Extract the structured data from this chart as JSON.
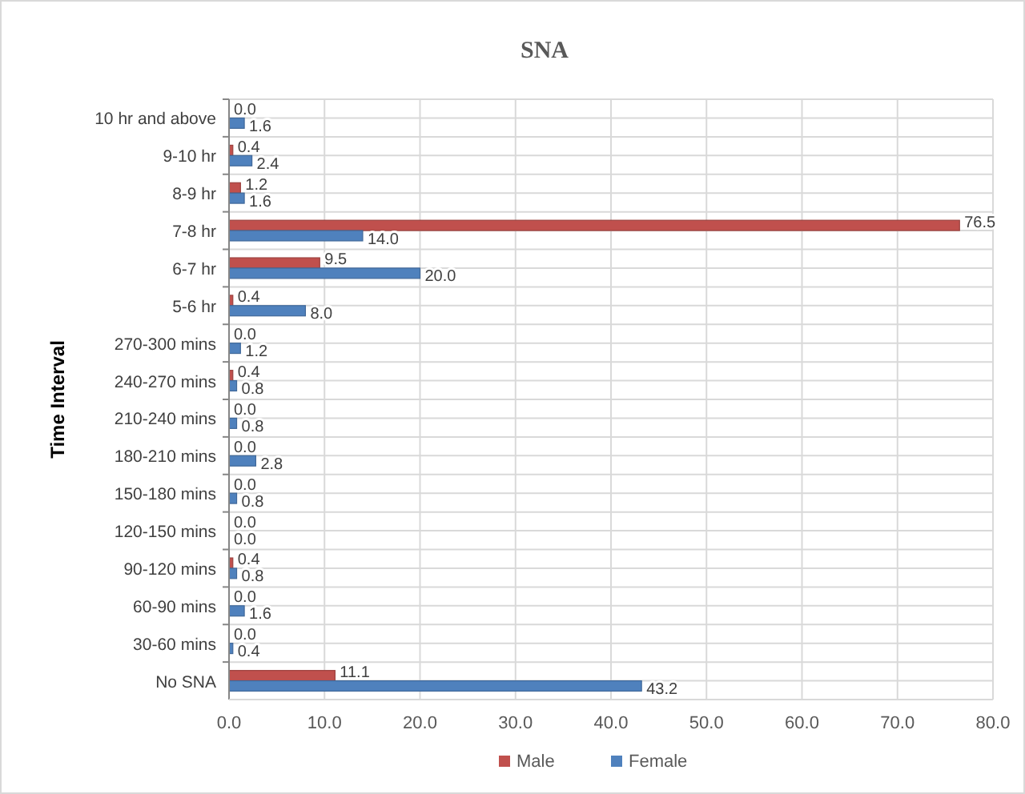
{
  "chart_data": {
    "type": "bar",
    "orientation": "horizontal",
    "title": "SNA",
    "ylabel": "Time Interval",
    "categories": [
      "10 hr and above",
      "9-10 hr",
      "8-9 hr",
      "7-8 hr",
      "6-7 hr",
      "5-6 hr",
      "270-300 mins",
      "240-270 mins",
      "210-240 mins",
      "180-210 mins",
      "150-180 mins",
      "120-150 mins",
      "90-120 mins",
      "60-90 mins",
      "30-60 mins",
      "No SNA"
    ],
    "series": [
      {
        "name": "Male",
        "color": "#c0504d",
        "values": [
          0.0,
          0.4,
          1.2,
          76.5,
          9.5,
          0.4,
          0.0,
          0.4,
          0.0,
          0.0,
          0.0,
          0.0,
          0.4,
          0.0,
          0.0,
          11.1
        ],
        "value_labels": [
          "0.0",
          "0.4",
          "1.2",
          "76.5",
          "9.5",
          "0.4",
          "0.0",
          "0.4",
          "0.0",
          "0.0",
          "0.0",
          "0.0",
          "0.4",
          "0.0",
          "0.0",
          "11.1"
        ]
      },
      {
        "name": "Female",
        "color": "#4f81bd",
        "values": [
          1.6,
          2.4,
          1.6,
          14.0,
          20.0,
          8.0,
          1.2,
          0.8,
          0.8,
          2.8,
          0.8,
          0.0,
          0.8,
          1.6,
          0.4,
          43.2
        ],
        "value_labels": [
          "1.6",
          "2.4",
          "1.6",
          "14.0",
          "20.0",
          "8.0",
          "1.2",
          "0.8",
          "0.8",
          "2.8",
          "0.8",
          "0.0",
          "0.8",
          "1.6",
          "0.4",
          "43.2"
        ]
      }
    ],
    "xlim": [
      0,
      80
    ],
    "xticks": [
      {
        "value": 0,
        "label": "0.0"
      },
      {
        "value": 10,
        "label": "10.0"
      },
      {
        "value": 20,
        "label": "20.0"
      },
      {
        "value": 30,
        "label": "30.0"
      },
      {
        "value": 40,
        "label": "40.0"
      },
      {
        "value": 50,
        "label": "50.0"
      },
      {
        "value": 60,
        "label": "60.0"
      },
      {
        "value": 70,
        "label": "70.0"
      },
      {
        "value": 80,
        "label": "80.0"
      }
    ],
    "grid": true,
    "legend": "bottom"
  }
}
